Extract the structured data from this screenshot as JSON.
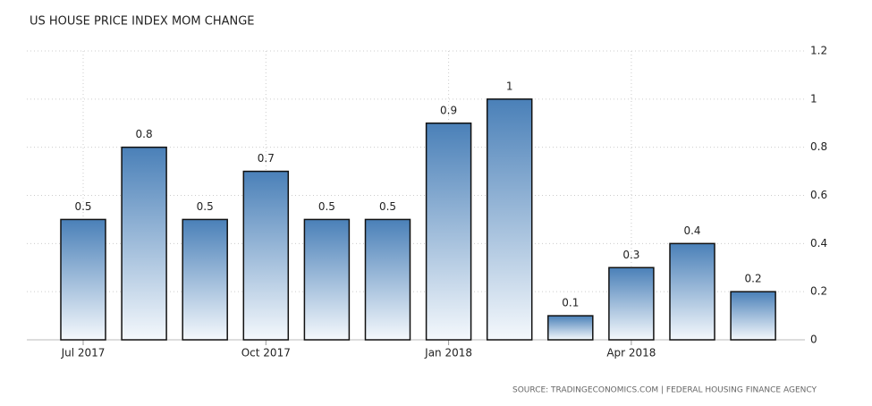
{
  "chart_data": {
    "type": "bar",
    "title": "US HOUSE PRICE INDEX MOM CHANGE",
    "categories": [
      "Jul 2017",
      null,
      null,
      "Oct 2017",
      null,
      null,
      "Jan 2018",
      null,
      null,
      "Apr 2018",
      null,
      null
    ],
    "values": [
      0.5,
      0.8,
      0.5,
      0.7,
      0.5,
      0.5,
      0.9,
      1,
      0.1,
      0.3,
      0.4,
      0.2
    ],
    "color": "#4a80b8",
    "ylim": [
      0,
      1.2
    ],
    "yticks": [
      0,
      0.2,
      0.4,
      0.6,
      0.8,
      1,
      1.2
    ],
    "grid": true,
    "source": "SOURCE: TRADINGECONOMICS.COM | FEDERAL HOUSING FINANCE AGENCY"
  }
}
